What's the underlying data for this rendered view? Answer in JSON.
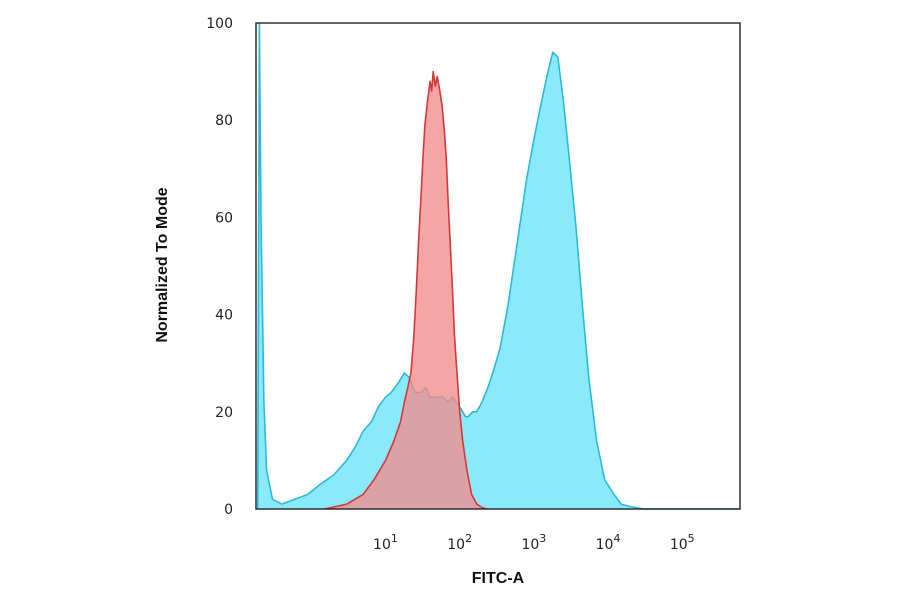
{
  "chart_data": {
    "type": "area",
    "title": "",
    "xlabel": "FITC-A",
    "ylabel": "Normalized To Mode",
    "x_scale": "log",
    "xlim": [
      0.18,
      600000
    ],
    "ylim": [
      0,
      100
    ],
    "grid": false,
    "legend": "none",
    "x_ticks": [
      {
        "value": 10,
        "base": "10",
        "exp": "1"
      },
      {
        "value": 100,
        "base": "10",
        "exp": "2"
      },
      {
        "value": 1000,
        "base": "10",
        "exp": "3"
      },
      {
        "value": 10000,
        "base": "10",
        "exp": "4"
      },
      {
        "value": 100000,
        "base": "10",
        "exp": "5"
      }
    ],
    "y_ticks": [
      {
        "value": 0,
        "label": "0"
      },
      {
        "value": 20,
        "label": "20"
      },
      {
        "value": 40,
        "label": "40"
      },
      {
        "value": 60,
        "label": "60"
      },
      {
        "value": 80,
        "label": "80"
      },
      {
        "value": 100,
        "label": "100"
      }
    ],
    "series": [
      {
        "fill": "#8aeafc",
        "stroke": "#2cb9d8",
        "points": [
          [
            0.19,
            0
          ],
          [
            0.2,
            100
          ],
          [
            0.21,
            60
          ],
          [
            0.23,
            22
          ],
          [
            0.25,
            8
          ],
          [
            0.3,
            2
          ],
          [
            0.4,
            1
          ],
          [
            0.6,
            2
          ],
          [
            0.9,
            3
          ],
          [
            1.3,
            5
          ],
          [
            2,
            7
          ],
          [
            3,
            10
          ],
          [
            4,
            13
          ],
          [
            5,
            16
          ],
          [
            6.5,
            18
          ],
          [
            8,
            21
          ],
          [
            10,
            23
          ],
          [
            12,
            24
          ],
          [
            15,
            26
          ],
          [
            18,
            28
          ],
          [
            21,
            27
          ],
          [
            25,
            24
          ],
          [
            30,
            24
          ],
          [
            35,
            25
          ],
          [
            40,
            23
          ],
          [
            50,
            23
          ],
          [
            60,
            23
          ],
          [
            70,
            22
          ],
          [
            80,
            23
          ],
          [
            90,
            22
          ],
          [
            100,
            21
          ],
          [
            110,
            20
          ],
          [
            120,
            19
          ],
          [
            130,
            19
          ],
          [
            150,
            20
          ],
          [
            170,
            20
          ],
          [
            200,
            22
          ],
          [
            240,
            25
          ],
          [
            280,
            28
          ],
          [
            350,
            33
          ],
          [
            450,
            42
          ],
          [
            600,
            55
          ],
          [
            800,
            68
          ],
          [
            1000,
            76
          ],
          [
            1200,
            82
          ],
          [
            1500,
            89
          ],
          [
            1800,
            94
          ],
          [
            2100,
            93
          ],
          [
            2500,
            84
          ],
          [
            3000,
            72
          ],
          [
            3700,
            58
          ],
          [
            4500,
            42
          ],
          [
            5500,
            27
          ],
          [
            7000,
            14
          ],
          [
            9000,
            6
          ],
          [
            12000,
            3
          ],
          [
            15000,
            1
          ],
          [
            20000,
            0.5
          ],
          [
            30000,
            0
          ],
          [
            590000,
            0
          ]
        ]
      },
      {
        "fill": "#f48c8c",
        "fill_opacity": 0.78,
        "stroke": "#d03a3a",
        "points": [
          [
            1.5,
            0
          ],
          [
            3,
            1
          ],
          [
            5,
            3
          ],
          [
            7,
            6
          ],
          [
            10,
            10
          ],
          [
            13,
            14
          ],
          [
            16,
            18
          ],
          [
            18,
            22
          ],
          [
            20,
            25
          ],
          [
            22,
            28
          ],
          [
            24,
            35
          ],
          [
            26,
            45
          ],
          [
            28,
            55
          ],
          [
            30,
            64
          ],
          [
            32,
            72
          ],
          [
            34,
            79
          ],
          [
            37,
            84
          ],
          [
            40,
            88
          ],
          [
            42,
            86
          ],
          [
            44,
            90
          ],
          [
            47,
            87
          ],
          [
            50,
            89
          ],
          [
            54,
            86
          ],
          [
            58,
            83
          ],
          [
            62,
            78
          ],
          [
            66,
            72
          ],
          [
            70,
            63
          ],
          [
            75,
            54
          ],
          [
            80,
            45
          ],
          [
            85,
            36
          ],
          [
            90,
            30
          ],
          [
            100,
            20
          ],
          [
            110,
            14
          ],
          [
            125,
            8
          ],
          [
            145,
            3
          ],
          [
            170,
            1
          ],
          [
            200,
            0.3
          ],
          [
            230,
            0
          ]
        ]
      }
    ]
  }
}
